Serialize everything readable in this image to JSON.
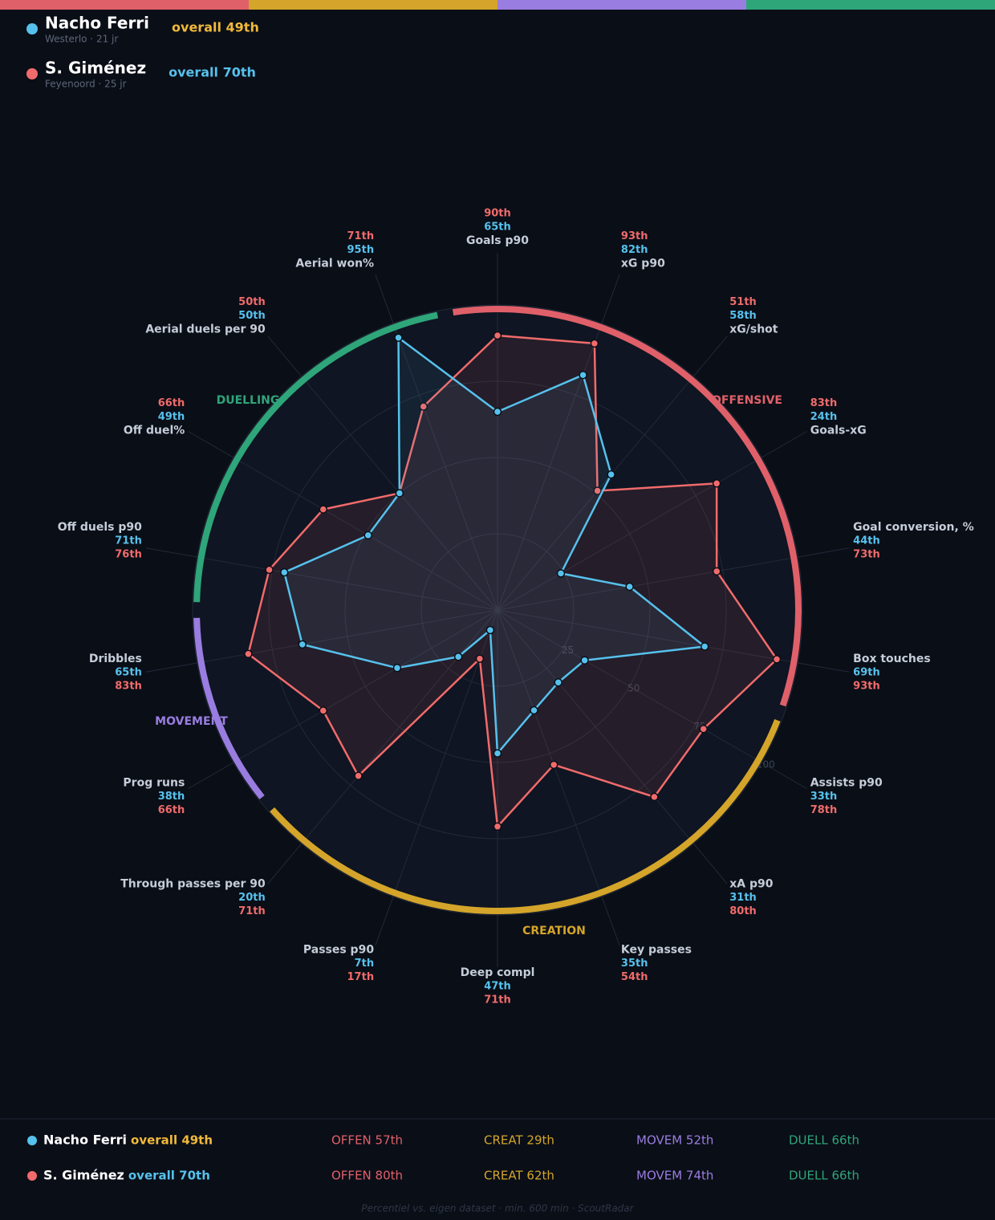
{
  "chart_data": {
    "type": "radar",
    "groups": [
      {
        "name": "OFFENSIVE",
        "color": "#e0606a",
        "categories": [
          "Goals p90",
          "xG p90",
          "xG/shot",
          "Goals-xG",
          "Goal conversion, %",
          "Box touches"
        ]
      },
      {
        "name": "CREATION",
        "color": "#d4a52a",
        "categories": [
          "Assists p90",
          "xA p90",
          "Key passes",
          "Deep compl",
          "Passes p90",
          "Through passes per 90"
        ]
      },
      {
        "name": "MOVEMENT",
        "color": "#9a7de0",
        "categories": [
          "Prog runs",
          "Dribbles"
        ]
      },
      {
        "name": "DUELLING",
        "color": "#2fa57a",
        "categories": [
          "Off duels p90",
          "Off duel%",
          "Aerial duels per 90",
          "Aerial won%"
        ]
      }
    ],
    "series": [
      {
        "name": "Nacho Ferri",
        "color": "#56c1ec",
        "subtitle": "Westerlo · 21 jr",
        "overall": "overall 49th",
        "overall_color": "#f0b93a",
        "values": [
          65,
          82,
          58,
          24,
          44,
          69,
          33,
          31,
          35,
          47,
          7,
          20,
          38,
          65,
          71,
          49,
          50,
          95
        ],
        "value_labels": [
          "65th",
          "82th",
          "58th",
          "24th",
          "44th",
          "69th",
          "33th",
          "31th",
          "35th",
          "47th",
          "7th",
          "20th",
          "38th",
          "65th",
          "71th",
          "49th",
          "50th",
          "95th"
        ],
        "summary": [
          "OFFEN 57th",
          "CREAT 29th",
          "MOVEM 52th",
          "DUELL 66th"
        ]
      },
      {
        "name": "S. Giménez",
        "color": "#f06b6b",
        "subtitle": "Feyenoord · 25 jr",
        "overall": "overall 70th",
        "overall_color": "#56c1ec",
        "values": [
          90,
          93,
          51,
          83,
          73,
          93,
          78,
          80,
          54,
          71,
          17,
          71,
          66,
          83,
          76,
          66,
          50,
          71
        ],
        "value_labels": [
          "90th",
          "93th",
          "51th",
          "83th",
          "73th",
          "93th",
          "78th",
          "80th",
          "54th",
          "71th",
          "17th",
          "71th",
          "66th",
          "83th",
          "76th",
          "66th",
          "50th",
          "71th"
        ],
        "summary": [
          "OFFEN 80th",
          "CREAT 62th",
          "MOVEM 74th",
          "DUELL 66th"
        ]
      }
    ],
    "ylim": [
      0,
      100
    ],
    "yticks": [
      25,
      50,
      75,
      100
    ],
    "grid": true
  },
  "footnote": "Percentiel vs. eigen dataset · min. 600 min · ScoutRadar"
}
